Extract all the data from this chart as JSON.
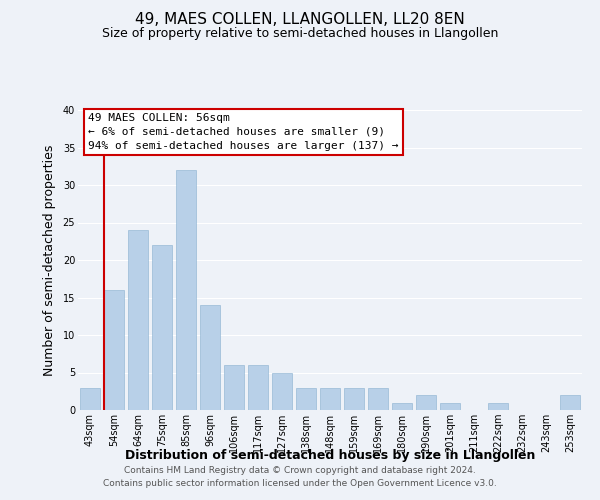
{
  "title": "49, MAES COLLEN, LLANGOLLEN, LL20 8EN",
  "subtitle": "Size of property relative to semi-detached houses in Llangollen",
  "xlabel": "Distribution of semi-detached houses by size in Llangollen",
  "ylabel": "Number of semi-detached properties",
  "categories": [
    "43sqm",
    "54sqm",
    "64sqm",
    "75sqm",
    "85sqm",
    "96sqm",
    "106sqm",
    "117sqm",
    "127sqm",
    "138sqm",
    "148sqm",
    "159sqm",
    "169sqm",
    "180sqm",
    "190sqm",
    "201sqm",
    "211sqm",
    "222sqm",
    "232sqm",
    "243sqm",
    "253sqm"
  ],
  "values": [
    3,
    16,
    24,
    22,
    32,
    14,
    6,
    6,
    5,
    3,
    3,
    3,
    3,
    1,
    2,
    1,
    0,
    1,
    0,
    0,
    2
  ],
  "bar_color": "#b8d0e8",
  "highlight_line_color": "#cc0000",
  "highlight_bar_index": 1,
  "ylim": [
    0,
    40
  ],
  "yticks": [
    0,
    5,
    10,
    15,
    20,
    25,
    30,
    35,
    40
  ],
  "annotation_title": "49 MAES COLLEN: 56sqm",
  "annotation_line1": "← 6% of semi-detached houses are smaller (9)",
  "annotation_line2": "94% of semi-detached houses are larger (137) →",
  "annotation_box_color": "#ffffff",
  "annotation_box_edge": "#cc0000",
  "footer1": "Contains HM Land Registry data © Crown copyright and database right 2024.",
  "footer2": "Contains public sector information licensed under the Open Government Licence v3.0.",
  "background_color": "#eef2f8",
  "grid_color": "#ffffff",
  "title_fontsize": 11,
  "subtitle_fontsize": 9,
  "axis_label_fontsize": 9,
  "tick_fontsize": 7,
  "footer_fontsize": 6.5,
  "annotation_fontsize": 8
}
